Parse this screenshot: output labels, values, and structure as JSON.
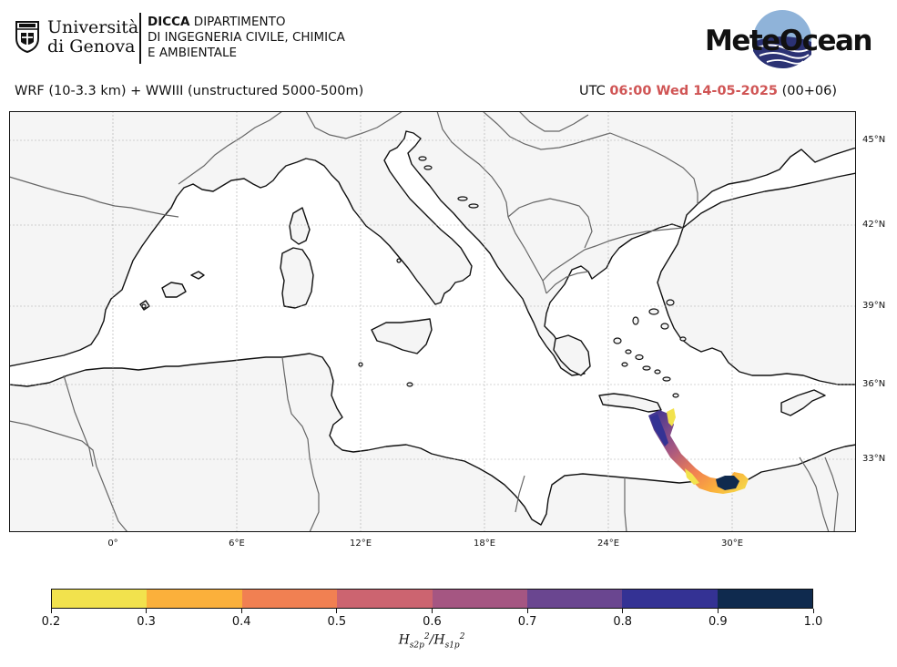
{
  "header": {
    "university_name_line1": "Università",
    "university_name_line2": "di Genova",
    "dept_abbrev": "DICCA",
    "dept_line1": "DIPARTIMENTO",
    "dept_line2": "DI INGEGNERIA CIVILE, CHIMICA",
    "dept_line3": "E AMBIENTALE",
    "brand_name": "MeteOcean"
  },
  "subtitle": {
    "model": "WRF (10-3.3 km) + WWIII (unstructured 5000-500m)",
    "utc_label": "UTC",
    "datetime": "06:00 Wed 14-05-2025",
    "lead": "(00+06)"
  },
  "map": {
    "lat_labels": [
      "45°N",
      "42°N",
      "39°N",
      "36°N",
      "33°N"
    ],
    "lon_labels": [
      "0°",
      "6°E",
      "12°E",
      "18°E",
      "24°E",
      "30°E"
    ],
    "land_color": "#f5f5f5",
    "sea_color": "#ffffff"
  },
  "colorbar": {
    "ticks": [
      "0.2",
      "0.3",
      "0.4",
      "0.5",
      "0.6",
      "0.7",
      "0.8",
      "0.9",
      "1.0"
    ],
    "colors": [
      "#f2e24d",
      "#fbb03b",
      "#f18052",
      "#cc6470",
      "#a55682",
      "#6a4690",
      "#343294",
      "#0f2a4e"
    ],
    "title_base": "H",
    "title_sub1": "s2p",
    "title_sup": "2",
    "title_sep": "/",
    "title_sub2": "s1p"
  }
}
